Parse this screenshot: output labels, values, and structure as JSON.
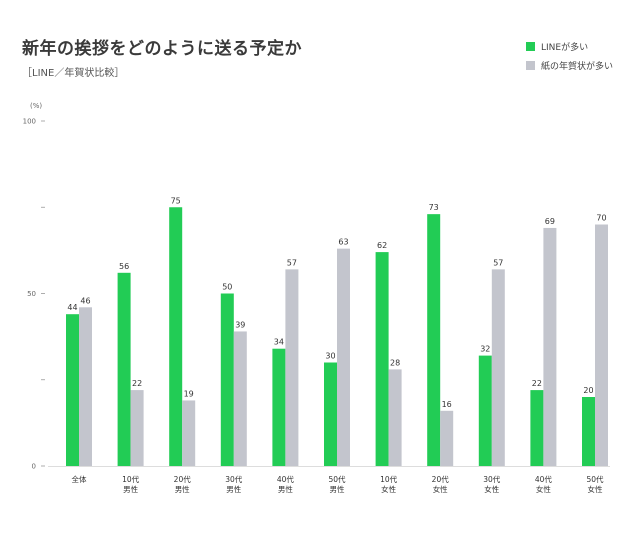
{
  "title": "新年の挨拶をどのように送る予定か",
  "subtitle": "［LINE／年賀状比較］",
  "colors": {
    "line": "#22cc55",
    "paper": "#c3c5cd",
    "axis": "#999999",
    "text": "#333333"
  },
  "chart_data": {
    "type": "bar",
    "title": "新年の挨拶をどのように送る予定か",
    "subtitle": "［LINE／年賀状比較］",
    "yunit": "(%)",
    "ylim": [
      0,
      100
    ],
    "yticks": [
      0,
      25,
      50,
      75,
      100
    ],
    "ytick_labels": [
      "0",
      "",
      "50",
      "",
      "100"
    ],
    "legend_position": "top-right",
    "categories": [
      [
        "全体"
      ],
      [
        "10代",
        "男性"
      ],
      [
        "20代",
        "男性"
      ],
      [
        "30代",
        "男性"
      ],
      [
        "40代",
        "男性"
      ],
      [
        "50代",
        "男性"
      ],
      [
        "10代",
        "女性"
      ],
      [
        "20代",
        "女性"
      ],
      [
        "30代",
        "女性"
      ],
      [
        "40代",
        "女性"
      ],
      [
        "50代",
        "女性"
      ]
    ],
    "series": [
      {
        "name": "LINEが多い",
        "color": "#22cc55",
        "values": [
          44,
          56,
          75,
          50,
          34,
          30,
          62,
          73,
          32,
          22,
          20
        ]
      },
      {
        "name": "紙の年賀状が多い",
        "color": "#c3c5cd",
        "values": [
          46,
          22,
          19,
          39,
          57,
          63,
          28,
          16,
          57,
          69,
          70
        ]
      }
    ]
  }
}
